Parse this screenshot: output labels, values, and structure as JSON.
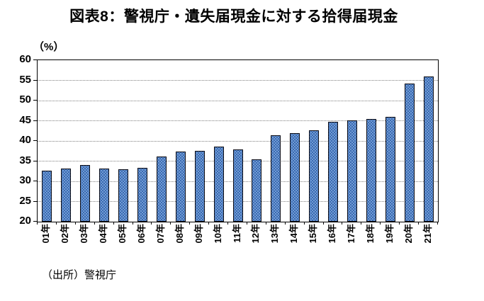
{
  "page": {
    "title": "図表8：警視庁・遺失届現金に対する拾得届現金",
    "y_axis_unit": "（%）",
    "source": "（出所）警視庁"
  },
  "colors": {
    "bar_fill": "#3a6ab2",
    "bar_speckle": "#84ade0",
    "bar_border": "#0b0b14",
    "gridline": "#808080",
    "axis": "#000000"
  },
  "chart_data": {
    "type": "bar",
    "title": "図表8：警視庁・遺失届現金に対する拾得届現金",
    "ylabel": "（%）",
    "ylim": [
      20,
      60
    ],
    "y_ticks": [
      60,
      55,
      50,
      45,
      40,
      35,
      30,
      25,
      20
    ],
    "grid": true,
    "legend": "none",
    "categories": [
      "01年",
      "02年",
      "03年",
      "04年",
      "05年",
      "06年",
      "07年",
      "08年",
      "09年",
      "10年",
      "11年",
      "12年",
      "13年",
      "14年",
      "15年",
      "16年",
      "17年",
      "18年",
      "19年",
      "20年",
      "21年"
    ],
    "values": [
      32.7,
      33.2,
      34.1,
      33.2,
      32.9,
      33.4,
      36.2,
      37.3,
      37.6,
      38.6,
      37.9,
      35.5,
      41.4,
      42.0,
      42.6,
      44.7,
      45.1,
      45.5,
      46.0,
      54.2,
      56.0
    ]
  }
}
